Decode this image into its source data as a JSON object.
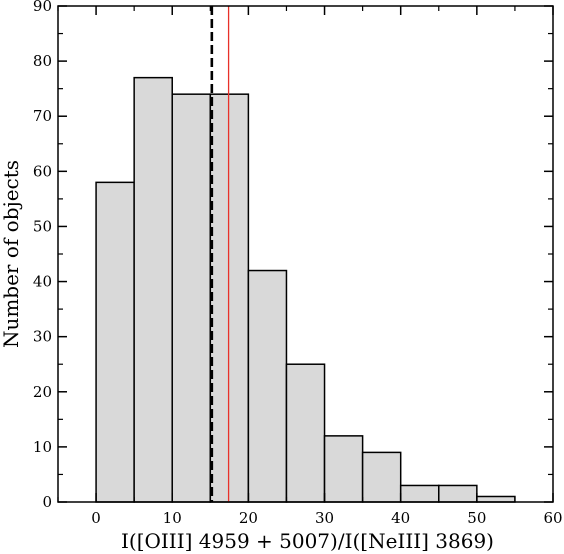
{
  "chart_data": {
    "type": "bar",
    "title": "",
    "xlabel": "I([OIII] 4959 + 5007)/I([NeIII] 3869)",
    "ylabel": "Number of objects",
    "xlim": [
      -5,
      60
    ],
    "ylim": [
      0,
      90
    ],
    "xticks": [
      0,
      10,
      20,
      30,
      40,
      50,
      60
    ],
    "yticks": [
      0,
      10,
      20,
      30,
      40,
      50,
      60,
      70,
      80,
      90
    ],
    "bin_width": 5,
    "bins": [
      {
        "x_start": 0,
        "x_end": 5,
        "count": 58
      },
      {
        "x_start": 5,
        "x_end": 10,
        "count": 77
      },
      {
        "x_start": 10,
        "x_end": 15,
        "count": 74
      },
      {
        "x_start": 15,
        "x_end": 20,
        "count": 74
      },
      {
        "x_start": 20,
        "x_end": 25,
        "count": 42
      },
      {
        "x_start": 25,
        "x_end": 30,
        "count": 25
      },
      {
        "x_start": 30,
        "x_end": 35,
        "count": 12
      },
      {
        "x_start": 35,
        "x_end": 40,
        "count": 9
      },
      {
        "x_start": 40,
        "x_end": 45,
        "count": 3
      },
      {
        "x_start": 45,
        "x_end": 50,
        "count": 3
      },
      {
        "x_start": 50,
        "x_end": 55,
        "count": 1
      }
    ],
    "reference_lines": [
      {
        "x": 15.2,
        "style": "dashed",
        "color": "#000000"
      },
      {
        "x": 17.4,
        "style": "solid",
        "color": "#e8312a"
      }
    ],
    "bar_fill": "#d9d9d9",
    "bar_stroke": "#000000",
    "grid": false,
    "legend": "none"
  }
}
